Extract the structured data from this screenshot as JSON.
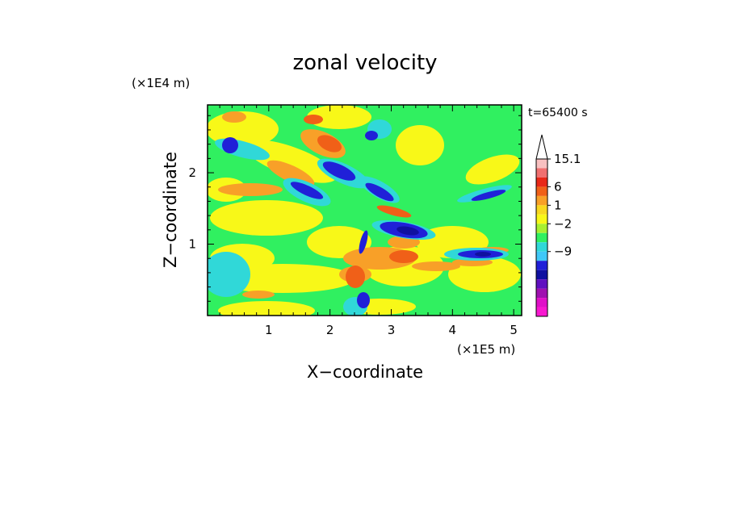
{
  "chart_data": {
    "type": "heatmap",
    "title": "zonal velocity",
    "xlabel": "X−coordinate",
    "ylabel": "Z−coordinate",
    "x_scale_label": "(×1E5 m)",
    "y_scale_label": "(×1E4 m)",
    "time_label": "t=65400 s",
    "xlim": [
      0,
      5.13
    ],
    "ylim": [
      0,
      2.95
    ],
    "x_ticks": [
      1,
      2,
      3,
      4,
      5
    ],
    "x_tick_labels": [
      "1",
      "2",
      "3",
      "4",
      "5"
    ],
    "y_ticks": [
      1,
      2
    ],
    "y_tick_labels": [
      "1",
      "2"
    ],
    "colorbar": {
      "extend": "max",
      "levels_top_to_bottom": [
        {
          "color": "#f8c0c0"
        },
        {
          "color": "#f07070"
        },
        {
          "color": "#e82818"
        },
        {
          "color": "#f06018"
        },
        {
          "color": "#f8a028"
        },
        {
          "color": "#f8d820"
        },
        {
          "color": "#f8f818"
        },
        {
          "color": "#a8f030"
        },
        {
          "color": "#30f060"
        },
        {
          "color": "#30d8d8"
        },
        {
          "color": "#40c8f8"
        },
        {
          "color": "#2020d8"
        },
        {
          "color": "#1010a0"
        },
        {
          "color": "#6010c0"
        },
        {
          "color": "#a010b0"
        },
        {
          "color": "#e010c8"
        },
        {
          "color": "#f818d0"
        }
      ],
      "tick_labels": [
        {
          "label": "15.1",
          "value": 15.1
        },
        {
          "label": "6",
          "value": 6
        },
        {
          "label": "1",
          "value": 1
        },
        {
          "label": "−2",
          "value": -2
        },
        {
          "label": "−9",
          "value": -9
        }
      ]
    },
    "field_colors": {
      "background": "#30f060",
      "yellow": "#f8f818",
      "light_orange": "#f8a028",
      "orange": "#f06018",
      "cyan": "#30d8d8",
      "light_blue": "#40c8f8",
      "blue": "#2020d8",
      "dark_blue": "#1010a0"
    }
  }
}
